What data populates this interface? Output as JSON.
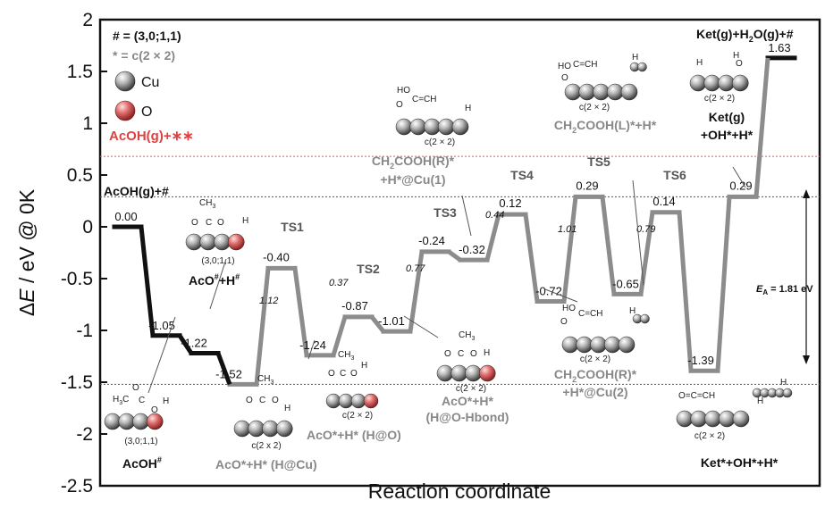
{
  "chart_data": {
    "type": "line",
    "xlabel": "Reaction coordinate",
    "ylabel_pre": "Δ",
    "ylabel_var": "E",
    "ylabel_post": " / eV @ 0K",
    "ylim": [
      -2.5,
      2
    ],
    "yticks": [
      "2",
      "1.5",
      "1",
      "0.5",
      "0",
      "-0.5",
      "-1",
      "-1.5",
      "-2",
      "-2.5"
    ],
    "ytick_values": [
      2,
      1.5,
      1,
      0.5,
      0,
      -0.5,
      -1,
      -1.5,
      -2,
      -2.5
    ],
    "levels": [
      {
        "x": 0,
        "y": 0.0,
        "label": "0.00",
        "series": "black"
      },
      {
        "x": 1,
        "y": -1.05,
        "label": "-1.05",
        "series": "black"
      },
      {
        "x": 2,
        "y": -1.22,
        "label": "-1.22",
        "series": "black"
      },
      {
        "x": 3,
        "y": -1.52,
        "label": "-1.52",
        "series": "gray"
      },
      {
        "x": 4,
        "y": -0.4,
        "label": "-0.40",
        "series": "gray"
      },
      {
        "x": 5,
        "y": -1.24,
        "label": "-1.24",
        "series": "gray"
      },
      {
        "x": 6,
        "y": -0.87,
        "label": "-0.87",
        "series": "gray"
      },
      {
        "x": 7,
        "y": -1.01,
        "label": "-1.01",
        "series": "gray"
      },
      {
        "x": 8,
        "y": -0.24,
        "label": "-0.24",
        "series": "gray"
      },
      {
        "x": 9,
        "y": -0.32,
        "label": "-0.32",
        "series": "gray"
      },
      {
        "x": 10,
        "y": 0.12,
        "label": "0.12",
        "series": "gray"
      },
      {
        "x": 11,
        "y": -0.72,
        "label": "-0.72",
        "series": "gray"
      },
      {
        "x": 12,
        "y": 0.29,
        "label": "0.29",
        "series": "gray"
      },
      {
        "x": 13,
        "y": -0.65,
        "label": "-0.65",
        "series": "gray"
      },
      {
        "x": 14,
        "y": 0.14,
        "label": "0.14",
        "series": "gray"
      },
      {
        "x": 15,
        "y": -1.39,
        "label": "-1.39",
        "series": "gray"
      },
      {
        "x": 16,
        "y": 0.29,
        "label": "0.29",
        "series": "gray"
      },
      {
        "x": 17,
        "y": 1.63,
        "label": "1.63",
        "series": "black"
      }
    ],
    "ts_labels": [
      "TS1",
      "TS2",
      "TS3",
      "TS4",
      "TS5",
      "TS6"
    ],
    "barriers": [
      "1.12",
      "0.37",
      "0.77",
      "0.44",
      "1.01",
      "0.79"
    ],
    "ref_lines": [
      0.68,
      0.29,
      -1.52
    ],
    "ea": {
      "pre": "E",
      "sub": "A",
      "post": " = 1.81 eV"
    },
    "legend": {
      "hash_def": "# = (3,0;1,1)",
      "star_def": "* = c(2 × 2)",
      "cu": "Cu",
      "o": "O",
      "acoh_gas": "AcOH(g)+∗∗"
    },
    "species": {
      "acoh_gas_hash": "AcOH(g)+#",
      "aco_h_hash_a": "AcO",
      "aco_h_hash_b": "#",
      "aco_h_hash_c": "+H",
      "aco_h_hash_d": "#",
      "acoh_hash_a": "AcOH",
      "acoh_hash_b": "#",
      "aco_h_cu": "AcO*+H* (H@Cu)",
      "aco_h_o": "AcO*+H* (H@O)",
      "aco_h_hbond_1": "AcO*+H*",
      "aco_h_hbond_2": "(H@O-Hbond)",
      "ch2cooh_r1_1": "CH",
      "ch2cooh_r1_2": "2",
      "ch2cooh_r1_3": "COOH(R)*",
      "ch2cooh_r1_4": "+H*@Cu(1)",
      "ch2cooh_r2_1": "CH",
      "ch2cooh_r2_2": "2",
      "ch2cooh_r2_3": "COOH(R)*",
      "ch2cooh_r2_4": "+H*@Cu(2)",
      "ch2cooh_l_1": "CH",
      "ch2cooh_l_2": "2",
      "ch2cooh_l_3": "COOH(L)*+H*",
      "ket_g_1": "Ket(g)",
      "ket_g_2": "+OH*+H*",
      "ket_ads": "Ket*+OH*+H*",
      "final_1": "Ket(g)+H",
      "final_2": "2",
      "final_3": "O(g)+#"
    },
    "surface_labels": {
      "hash": "(3,0;1,1)",
      "star": "c(2 × 2)",
      "star_nosp": "c(2 x 2)"
    },
    "mol_text": {
      "ch3": "CH",
      "three": "3",
      "h3c": "H",
      "h3c_b": "3",
      "h3c_c": "C",
      "c": "C",
      "o": "O",
      "h": "H",
      "ho": "HO",
      "ch2": "CH",
      "two": "2",
      "c_eq": "C=CH",
      "o_eq": "O=C=CH"
    },
    "colors": {
      "black_path": "#111111",
      "gray_path": "#8c8c8c",
      "red_line": "#e06060",
      "red_text": "#e04040",
      "cu_atom": "#9a9a9a",
      "o_atom": "#d65c5c"
    }
  }
}
